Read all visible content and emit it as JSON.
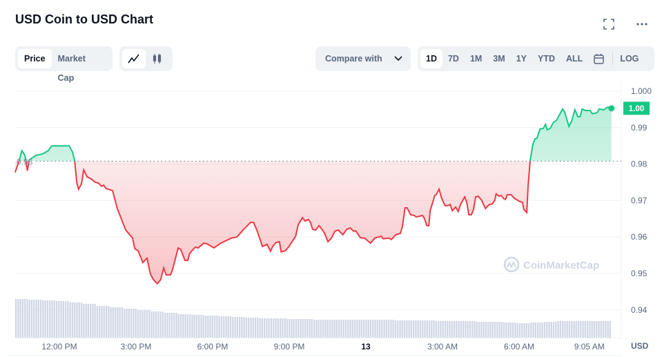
{
  "header": {
    "title": "USD Coin to USD Chart",
    "expand_icon": "fullscreen-icon",
    "more_icon": "more-horizontal-icon"
  },
  "toolbar": {
    "metric_tabs": [
      {
        "label": "Price",
        "active": true
      },
      {
        "label": "Market Cap",
        "active": false
      }
    ],
    "chart_types": [
      {
        "icon": "line-chart-icon",
        "active": true
      },
      {
        "icon": "candlestick-icon",
        "active": false
      }
    ],
    "compare_label": "Compare with",
    "periods": [
      {
        "label": "1D",
        "active": true
      },
      {
        "label": "7D"
      },
      {
        "label": "1M"
      },
      {
        "label": "3M"
      },
      {
        "label": "1Y"
      },
      {
        "label": "YTD"
      },
      {
        "label": "ALL"
      }
    ],
    "calendar_icon": "calendar-icon",
    "log_label": "LOG"
  },
  "colors": {
    "up": "#16c784",
    "down": "#ea3943",
    "volume": "#cfd6e4",
    "grid": "#eff2f5",
    "axis_text": "#58667e"
  },
  "chart_data": {
    "type": "line",
    "title": "USD Coin to USD Chart",
    "ylabel": "USD",
    "ylim": [
      0.935,
      1.0
    ],
    "x_unit": "minutes from 12:00 PM",
    "reference_price": 0.9808,
    "reference_label": "0.98",
    "current_price_label": "1.00",
    "y_ticks": [
      {
        "v": 1.0,
        "label": "1.000"
      },
      {
        "v": 0.99,
        "label": "0.99"
      },
      {
        "v": 0.98,
        "label": "0.98"
      },
      {
        "v": 0.97,
        "label": "0.97"
      },
      {
        "v": 0.96,
        "label": "0.96"
      },
      {
        "v": 0.95,
        "label": "0.95"
      },
      {
        "v": 0.94,
        "label": "0.94"
      }
    ],
    "x_ticks": [
      {
        "t": 0,
        "label": "12:00 PM"
      },
      {
        "t": 180,
        "label": "3:00 PM"
      },
      {
        "t": 360,
        "label": "6:00 PM"
      },
      {
        "t": 540,
        "label": "9:00 PM"
      },
      {
        "t": 720,
        "label": "13"
      },
      {
        "t": 900,
        "label": "3:00 AM"
      },
      {
        "t": 1080,
        "label": "6:00 AM"
      },
      {
        "t": 1245,
        "label": "9:05 AM"
      }
    ],
    "price": [
      [
        -104,
        0.9777
      ],
      [
        -94,
        0.9811
      ],
      [
        -88,
        0.9837
      ],
      [
        -81,
        0.9824
      ],
      [
        -75,
        0.9782
      ],
      [
        -71,
        0.9811
      ],
      [
        -55,
        0.9824
      ],
      [
        -39,
        0.9828
      ],
      [
        -26,
        0.9837
      ],
      [
        -18,
        0.985
      ],
      [
        23,
        0.985
      ],
      [
        31,
        0.9833
      ],
      [
        36,
        0.9809
      ],
      [
        41,
        0.9748
      ],
      [
        45,
        0.9731
      ],
      [
        52,
        0.9746
      ],
      [
        57,
        0.9784
      ],
      [
        65,
        0.9765
      ],
      [
        75,
        0.9759
      ],
      [
        84,
        0.975
      ],
      [
        92,
        0.9748
      ],
      [
        99,
        0.9739
      ],
      [
        104,
        0.9742
      ],
      [
        110,
        0.9733
      ],
      [
        120,
        0.9729
      ],
      [
        125,
        0.9727
      ],
      [
        136,
        0.9678
      ],
      [
        156,
        0.9619
      ],
      [
        172,
        0.9597
      ],
      [
        177,
        0.9568
      ],
      [
        185,
        0.9562
      ],
      [
        196,
        0.953
      ],
      [
        206,
        0.9542
      ],
      [
        214,
        0.9498
      ],
      [
        221,
        0.9483
      ],
      [
        230,
        0.9472
      ],
      [
        238,
        0.9483
      ],
      [
        245,
        0.9515
      ],
      [
        251,
        0.9496
      ],
      [
        261,
        0.9496
      ],
      [
        266,
        0.9511
      ],
      [
        279,
        0.957
      ],
      [
        285,
        0.9566
      ],
      [
        295,
        0.9536
      ],
      [
        302,
        0.9536
      ],
      [
        306,
        0.9555
      ],
      [
        319,
        0.9572
      ],
      [
        326,
        0.957
      ],
      [
        339,
        0.9583
      ],
      [
        347,
        0.9581
      ],
      [
        363,
        0.957
      ],
      [
        379,
        0.9583
      ],
      [
        404,
        0.9597
      ],
      [
        417,
        0.96
      ],
      [
        433,
        0.9621
      ],
      [
        449,
        0.964
      ],
      [
        456,
        0.964
      ],
      [
        464,
        0.9619
      ],
      [
        477,
        0.9574
      ],
      [
        488,
        0.958
      ],
      [
        496,
        0.9561
      ],
      [
        501,
        0.9574
      ],
      [
        509,
        0.9585
      ],
      [
        517,
        0.9587
      ],
      [
        521,
        0.9559
      ],
      [
        530,
        0.9562
      ],
      [
        538,
        0.9572
      ],
      [
        555,
        0.9602
      ],
      [
        561,
        0.9634
      ],
      [
        571,
        0.9653
      ],
      [
        577,
        0.9644
      ],
      [
        585,
        0.9648
      ],
      [
        590,
        0.964
      ],
      [
        595,
        0.9621
      ],
      [
        602,
        0.9619
      ],
      [
        610,
        0.9631
      ],
      [
        618,
        0.9619
      ],
      [
        623,
        0.961
      ],
      [
        631,
        0.9587
      ],
      [
        639,
        0.9597
      ],
      [
        647,
        0.9616
      ],
      [
        655,
        0.9619
      ],
      [
        666,
        0.9606
      ],
      [
        675,
        0.9621
      ],
      [
        683,
        0.9625
      ],
      [
        691,
        0.9616
      ],
      [
        696,
        0.9617
      ],
      [
        707,
        0.9598
      ],
      [
        717,
        0.9597
      ],
      [
        731,
        0.9583
      ],
      [
        741,
        0.9597
      ],
      [
        756,
        0.9602
      ],
      [
        761,
        0.9595
      ],
      [
        774,
        0.9597
      ],
      [
        780,
        0.9593
      ],
      [
        790,
        0.9606
      ],
      [
        801,
        0.961
      ],
      [
        806,
        0.9629
      ],
      [
        812,
        0.968
      ],
      [
        817,
        0.968
      ],
      [
        825,
        0.9661
      ],
      [
        834,
        0.9659
      ],
      [
        838,
        0.9655
      ],
      [
        846,
        0.9657
      ],
      [
        853,
        0.9659
      ],
      [
        858,
        0.965
      ],
      [
        863,
        0.9631
      ],
      [
        868,
        0.9631
      ],
      [
        871,
        0.9672
      ],
      [
        882,
        0.9714
      ],
      [
        885,
        0.9716
      ],
      [
        892,
        0.9731
      ],
      [
        898,
        0.9706
      ],
      [
        906,
        0.9686
      ],
      [
        913,
        0.9686
      ],
      [
        918,
        0.9689
      ],
      [
        923,
        0.9672
      ],
      [
        931,
        0.9682
      ],
      [
        937,
        0.967
      ],
      [
        942,
        0.9688
      ],
      [
        952,
        0.971
      ],
      [
        957,
        0.9695
      ],
      [
        962,
        0.9661
      ],
      [
        968,
        0.9661
      ],
      [
        973,
        0.9676
      ],
      [
        978,
        0.971
      ],
      [
        984,
        0.9712
      ],
      [
        992,
        0.9701
      ],
      [
        1001,
        0.9678
      ],
      [
        1009,
        0.9688
      ],
      [
        1017,
        0.9691
      ],
      [
        1023,
        0.9701
      ],
      [
        1026,
        0.9718
      ],
      [
        1033,
        0.9712
      ],
      [
        1038,
        0.9714
      ],
      [
        1044,
        0.9705
      ],
      [
        1048,
        0.9703
      ],
      [
        1052,
        0.9716
      ],
      [
        1061,
        0.9716
      ],
      [
        1069,
        0.9706
      ],
      [
        1082,
        0.9697
      ],
      [
        1088,
        0.9695
      ],
      [
        1091,
        0.9676
      ],
      [
        1098,
        0.9667
      ],
      [
        1101,
        0.9739
      ],
      [
        1106,
        0.9809
      ],
      [
        1112,
        0.9852
      ],
      [
        1117,
        0.9869
      ],
      [
        1122,
        0.9871
      ],
      [
        1129,
        0.9896
      ],
      [
        1137,
        0.9898
      ],
      [
        1142,
        0.9909
      ],
      [
        1146,
        0.9894
      ],
      [
        1153,
        0.9898
      ],
      [
        1161,
        0.9915
      ],
      [
        1168,
        0.992
      ],
      [
        1182,
        0.9951
      ],
      [
        1187,
        0.9943
      ],
      [
        1197,
        0.9903
      ],
      [
        1203,
        0.9917
      ],
      [
        1211,
        0.9949
      ],
      [
        1218,
        0.993
      ],
      [
        1223,
        0.993
      ],
      [
        1228,
        0.9951
      ],
      [
        1236,
        0.9947
      ],
      [
        1247,
        0.9947
      ],
      [
        1252,
        0.9938
      ],
      [
        1263,
        0.9941
      ],
      [
        1268,
        0.9951
      ],
      [
        1279,
        0.9949
      ],
      [
        1288,
        0.9956
      ],
      [
        1297,
        0.9953
      ]
    ],
    "volume_relative": [
      56,
      55,
      54,
      53,
      51,
      49,
      46,
      44,
      42,
      40,
      38,
      36,
      34,
      33,
      32,
      31,
      30,
      29,
      28,
      28,
      27,
      27,
      26,
      26,
      26,
      26,
      26,
      26,
      25,
      25,
      25,
      24,
      24,
      24,
      23,
      23,
      22,
      21,
      22,
      23,
      24,
      24,
      24,
      24
    ],
    "watermark": "CoinMarketCap"
  }
}
